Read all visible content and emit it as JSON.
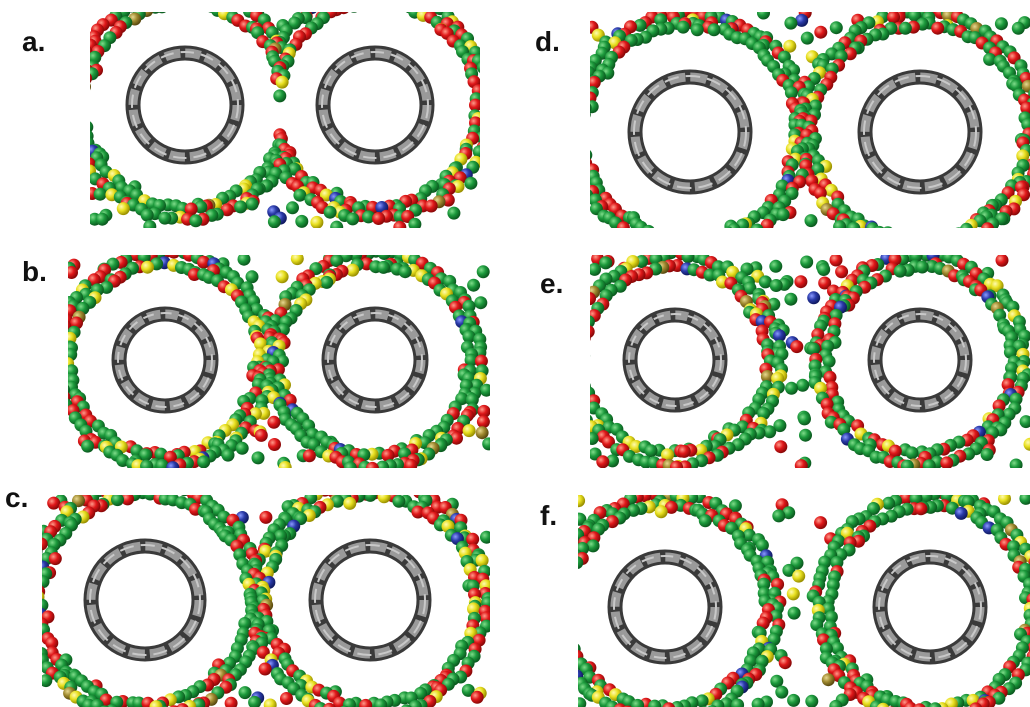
{
  "panels": [
    {
      "label": "a."
    },
    {
      "label": "b."
    },
    {
      "label": "c."
    },
    {
      "label": "d."
    },
    {
      "label": "e."
    },
    {
      "label": "f."
    }
  ]
}
